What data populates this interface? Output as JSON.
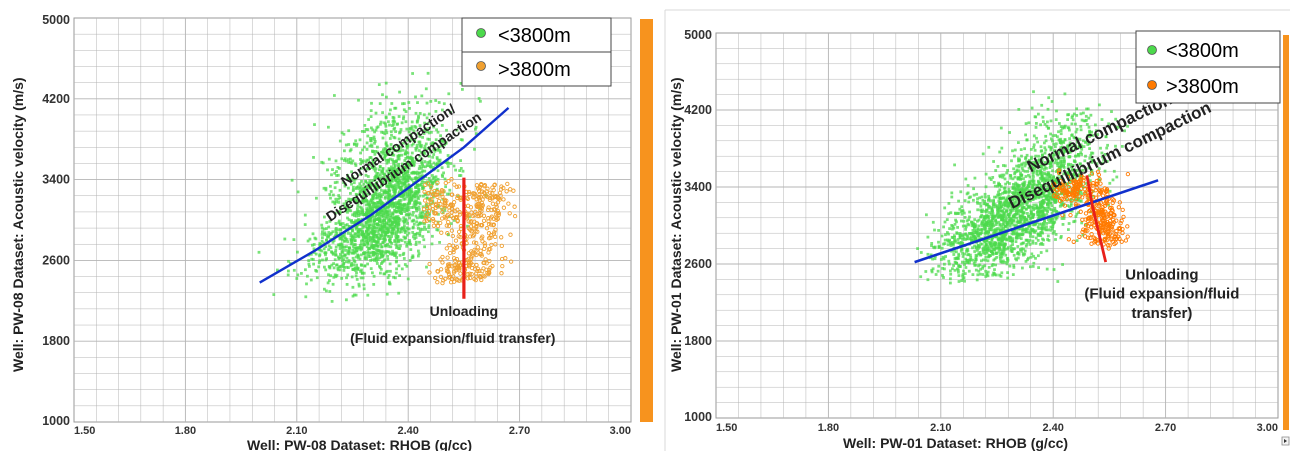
{
  "colors": {
    "shallow_points": "#4cd94c",
    "deep_points": "#f0a030",
    "deep_points_right": "#ff7a00",
    "trend_line": "#1030cc",
    "unloading_line": "#e8201a",
    "side_bar": "#f7931e",
    "grid": "#b4b4b4"
  },
  "chart_data": [
    {
      "type": "scatter",
      "title": "",
      "xlabel": "Well: PW-08 Dataset: RHOB (g/cc)",
      "ylabel": "Well: PW-08 Dataset: Acoustic velocity (m/s)",
      "xlim": [
        1.5,
        3.0
      ],
      "ylim": [
        1000,
        5000
      ],
      "x_ticks": [
        "1.50",
        "1.80",
        "2.10",
        "2.40",
        "2.70",
        "3.00"
      ],
      "y_ticks": [
        "5000",
        "4200",
        "3400",
        "2600",
        "1800",
        "1000"
      ],
      "grid": true,
      "legend_position": "top-right",
      "series": [
        {
          "name": "<3800m",
          "color": "shallow_points",
          "clusters": [
            {
              "cx": 2.34,
              "cy": 3050,
              "sx": 0.075,
              "sy": 320,
              "rho": 0.5,
              "n": 1500
            },
            {
              "cx": 2.36,
              "cy": 3600,
              "sx": 0.09,
              "sy": 350,
              "rho": 0.3,
              "n": 550
            },
            {
              "cx": 2.2,
              "cy": 2750,
              "sx": 0.07,
              "sy": 230,
              "rho": 0.4,
              "n": 140
            }
          ],
          "x_range": [
            1.98,
            2.62
          ],
          "y_range": [
            2150,
            4500
          ]
        },
        {
          "name": ">3800m",
          "color": "deep_points",
          "clusters": [
            {
              "cx": 2.48,
              "cy": 3170,
              "sx": 0.045,
              "sy": 110,
              "rho": 0.0,
              "n": 120
            },
            {
              "cx": 2.58,
              "cy": 2950,
              "sx": 0.045,
              "sy": 170,
              "rho": 0.0,
              "n": 170
            },
            {
              "cx": 2.55,
              "cy": 2500,
              "sx": 0.045,
              "sy": 90,
              "rho": 0.0,
              "n": 130
            },
            {
              "cx": 2.62,
              "cy": 3250,
              "sx": 0.03,
              "sy": 90,
              "rho": 0.0,
              "n": 60
            }
          ],
          "x_range": [
            2.44,
            2.7
          ],
          "y_range": [
            2360,
            3420
          ]
        }
      ],
      "trend_line": {
        "x": [
          2.0,
          2.15,
          2.3,
          2.45,
          2.55,
          2.67
        ],
        "y": [
          2380,
          2700,
          3050,
          3450,
          3720,
          4110
        ]
      },
      "unloading_line": {
        "x": [
          2.55,
          2.55
        ],
        "y": [
          3420,
          2220
        ]
      },
      "annotations": [
        {
          "text": "Normal compaction/",
          "x": 2.23,
          "y": 3330,
          "angle": -34
        },
        {
          "text": "Disequillibrium compaction",
          "x": 2.19,
          "y": 2980,
          "angle": -34
        },
        {
          "text": "Unloading",
          "x": 2.55,
          "y": 2050,
          "angle": 0
        },
        {
          "text": "(Fluid expansion/fluid transfer)",
          "x": 2.52,
          "y": 1780,
          "angle": 0
        }
      ]
    },
    {
      "type": "scatter",
      "title": "",
      "xlabel": "Well: PW-01 Dataset: RHOB (g/cc)",
      "ylabel": "Well: PW-01 Dataset: Acoustic velocity (m/s)",
      "xlim": [
        1.5,
        3.0
      ],
      "ylim": [
        1000,
        5000
      ],
      "x_ticks": [
        "1.50",
        "1.80",
        "2.10",
        "2.40",
        "2.70",
        "3.00"
      ],
      "y_ticks": [
        "5000",
        "4200",
        "3400",
        "2600",
        "1800",
        "1000"
      ],
      "grid": true,
      "legend_position": "top-right",
      "series": [
        {
          "name": "<3800m",
          "color": "shallow_points",
          "clusters": [
            {
              "cx": 2.3,
              "cy": 3100,
              "sx": 0.09,
              "sy": 300,
              "rho": 0.55,
              "n": 1500
            },
            {
              "cx": 2.4,
              "cy": 3700,
              "sx": 0.08,
              "sy": 300,
              "rho": 0.4,
              "n": 420
            },
            {
              "cx": 2.18,
              "cy": 2800,
              "sx": 0.06,
              "sy": 200,
              "rho": 0.3,
              "n": 180
            }
          ],
          "x_range": [
            2.03,
            2.6
          ],
          "y_range": [
            2400,
            4400
          ]
        },
        {
          "name": ">3800m",
          "color": "deep_points_right",
          "clusters": [
            {
              "cx": 2.46,
              "cy": 3380,
              "sx": 0.04,
              "sy": 80,
              "rho": 0.0,
              "n": 140
            },
            {
              "cx": 2.52,
              "cy": 3080,
              "sx": 0.03,
              "sy": 140,
              "rho": 0.0,
              "n": 140
            },
            {
              "cx": 2.55,
              "cy": 2950,
              "sx": 0.025,
              "sy": 120,
              "rho": 0.0,
              "n": 80
            }
          ],
          "x_range": [
            2.4,
            2.6
          ],
          "y_range": [
            2750,
            3620
          ]
        }
      ],
      "trend_line": {
        "x": [
          2.03,
          2.68
        ],
        "y": [
          2620,
          3470
        ]
      },
      "unloading_line": {
        "x": [
          2.49,
          2.505,
          2.54
        ],
        "y": [
          3520,
          3200,
          2620
        ]
      },
      "annotations": [
        {
          "text": "Normal compaction/",
          "x": 2.34,
          "y": 3550,
          "angle": -26
        },
        {
          "text": "Disequillibrium compaction",
          "x": 2.29,
          "y": 3170,
          "angle": -26
        },
        {
          "text": "Unloading",
          "x": 2.69,
          "y": 2440,
          "angle": 0
        },
        {
          "text": "(Fluid expansion/fluid",
          "x": 2.69,
          "y": 2240,
          "angle": 0
        },
        {
          "text": "transfer)",
          "x": 2.69,
          "y": 2040,
          "angle": 0
        }
      ]
    }
  ]
}
